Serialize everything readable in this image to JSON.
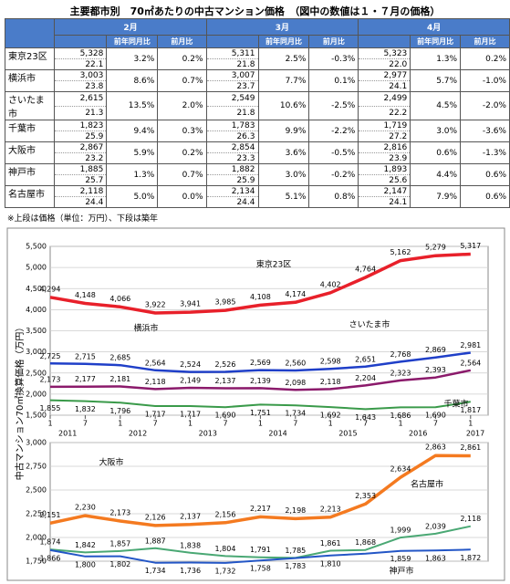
{
  "table": {
    "title": "主要都市別　70㎡あたりの中古マンション価格　（図中の数値は１・７月の価格）",
    "months": [
      "2月",
      "3月",
      "4月"
    ],
    "subheaders": [
      "前年同月比",
      "前月比"
    ],
    "rows": [
      {
        "city": "東京23区",
        "cells": [
          [
            "5,328",
            "22.1",
            "3.2%",
            "0.2%"
          ],
          [
            "5,311",
            "21.8",
            "2.5%",
            "-0.3%"
          ],
          [
            "5,323",
            "22.0",
            "1.3%",
            "0.2%"
          ]
        ]
      },
      {
        "city": "横浜市",
        "cells": [
          [
            "3,003",
            "23.8",
            "8.6%",
            "0.7%"
          ],
          [
            "3,007",
            "23.7",
            "7.7%",
            "0.1%"
          ],
          [
            "2,977",
            "24.1",
            "5.7%",
            "-1.0%"
          ]
        ]
      },
      {
        "city": "さいたま市",
        "cells": [
          [
            "2,615",
            "21.3",
            "13.5%",
            "2.0%"
          ],
          [
            "2,549",
            "21.8",
            "10.6%",
            "-2.5%"
          ],
          [
            "2,499",
            "22.2",
            "4.5%",
            "-2.0%"
          ]
        ]
      },
      {
        "city": "千葉市",
        "cells": [
          [
            "1,823",
            "25.9",
            "9.4%",
            "0.3%"
          ],
          [
            "1,783",
            "26.3",
            "9.9%",
            "-2.2%"
          ],
          [
            "1,719",
            "27.2",
            "3.0%",
            "-3.6%"
          ]
        ]
      },
      {
        "city": "大阪市",
        "cells": [
          [
            "2,867",
            "23.2",
            "5.9%",
            "0.2%"
          ],
          [
            "2,854",
            "23.3",
            "3.6%",
            "-0.5%"
          ],
          [
            "2,816",
            "23.9",
            "0.6%",
            "-1.3%"
          ]
        ]
      },
      {
        "city": "神戸市",
        "cells": [
          [
            "1,885",
            "25.7",
            "1.3%",
            "0.7%"
          ],
          [
            "1,882",
            "25.9",
            "3.0%",
            "-0.2%"
          ],
          [
            "1,893",
            "25.6",
            "4.4%",
            "0.6%"
          ]
        ]
      },
      {
        "city": "名古屋市",
        "cells": [
          [
            "2,118",
            "24.4",
            "5.0%",
            "0.0%"
          ],
          [
            "2,134",
            "24.4",
            "5.1%",
            "0.8%"
          ],
          [
            "2,147",
            "24.1",
            "7.9%",
            "0.6%"
          ]
        ]
      }
    ],
    "note": "※上段は価格（単位：万円）、下段は築年"
  },
  "chart_data": [
    {
      "type": "line",
      "ylabel": "中古マンション70㎡換算価格（万円）",
      "categories": [
        "1",
        "7",
        "1",
        "7",
        "1",
        "7",
        "1",
        "7",
        "1",
        "7",
        "1",
        "7",
        "1"
      ],
      "year_labels": [
        "2011",
        "2012",
        "2013",
        "2014",
        "2015",
        "2016",
        "2017"
      ],
      "ylim": [
        1500,
        5500
      ],
      "yticks": [
        {
          "value": 1500,
          "label": "1,500"
        },
        {
          "value": 2000,
          "label": "2,000"
        },
        {
          "value": 2500,
          "label": "2,500"
        },
        {
          "value": 3000,
          "label": "3,000"
        },
        {
          "value": 3500,
          "label": "3,500"
        },
        {
          "value": 4000,
          "label": "4,000"
        },
        {
          "value": 4500,
          "label": "4,500"
        },
        {
          "value": 5000,
          "label": "5,000"
        },
        {
          "value": 5500,
          "label": "5,500"
        }
      ],
      "grid": true,
      "series": [
        {
          "name": "東京23区",
          "color": "#e8202a",
          "values": [
            4294,
            4148,
            4066,
            3922,
            3941,
            3985,
            4108,
            4174,
            4402,
            4764,
            5162,
            5279,
            5317
          ],
          "value_labels": [
            "4,294",
            "4,148",
            "4,066",
            "3,922",
            "3,941",
            "3,985",
            "4,108",
            "4,174",
            "4,402",
            "4,764",
            "5,162",
            "5,279",
            "5,317"
          ]
        },
        {
          "name": "横浜市",
          "color": "#1f3fc8",
          "values": [
            2725,
            2715,
            2685,
            2564,
            2524,
            2526,
            2569,
            2560,
            2598,
            2651,
            2768,
            2869,
            2981
          ],
          "value_labels": [
            "2,725",
            "2,715",
            "2,685",
            "2,564",
            "2,524",
            "2,526",
            "2,569",
            "2,560",
            "2,598",
            "2,651",
            "2,768",
            "2,869",
            "2,981"
          ]
        },
        {
          "name": "さいたま市",
          "color": "#8b1a6b",
          "values": [
            2173,
            2177,
            2181,
            2118,
            2149,
            2137,
            2139,
            2098,
            2118,
            2204,
            2323,
            2393,
            2564
          ],
          "value_labels": [
            "2,173",
            "2,177",
            "2,181",
            "2,118",
            "2,149",
            "2,137",
            "2,139",
            "2,098",
            "2,118",
            "2,204",
            "2,323",
            "2,393",
            "2,564"
          ]
        },
        {
          "name": "千葉市",
          "color": "#3a9a4a",
          "values": [
            1855,
            1832,
            1796,
            1717,
            1717,
            1690,
            1751,
            1734,
            1692,
            1643,
            1686,
            1690,
            1817
          ],
          "value_labels": [
            "1,855",
            "1,832",
            "1,796",
            "1,717",
            "1,717",
            "1,690",
            "1,751",
            "1,734",
            "1,692",
            "1,643",
            "1,686",
            "1,690",
            "1,817"
          ]
        }
      ]
    },
    {
      "type": "line",
      "ylim": [
        1750,
        3000
      ],
      "yticks": [
        {
          "value": 1750,
          "label": "1,750"
        },
        {
          "value": 2000,
          "label": "2,000"
        },
        {
          "value": 2250,
          "label": "2,250"
        },
        {
          "value": 2500,
          "label": "2,500"
        },
        {
          "value": 2750,
          "label": "2,750"
        },
        {
          "value": 3000,
          "label": "3,000"
        }
      ],
      "grid": true,
      "series": [
        {
          "name": "大阪市",
          "color": "#f47a20",
          "values": [
            2151,
            2230,
            2173,
            2126,
            2137,
            2156,
            2217,
            2198,
            2213,
            2353,
            2634,
            2863,
            2861
          ],
          "value_labels": [
            "2,151",
            "2,230",
            "2,173",
            "2,126",
            "2,137",
            "2,156",
            "2,217",
            "2,198",
            "2,213",
            "2,353",
            "2,634",
            "2,863",
            "2,861"
          ]
        },
        {
          "name": "名古屋市",
          "color": "#4aa874",
          "values": [
            1874,
            1842,
            1857,
            1887,
            1838,
            1804,
            1791,
            1785,
            1861,
            1868,
            1999,
            2039,
            2118
          ],
          "value_labels": [
            "1,874",
            "1,842",
            "1,857",
            "1,887",
            "1,838",
            "1,804",
            "1,791",
            "1,785",
            "1,861",
            "1,868",
            "1,999",
            "2,039",
            "2,118"
          ]
        },
        {
          "name": "神戸市",
          "color": "#2356c6",
          "values": [
            1866,
            1800,
            1802,
            1734,
            1736,
            1732,
            1758,
            1783,
            1810,
            1830,
            1859,
            1863,
            1872
          ],
          "value_labels": [
            "1,866",
            "1,800",
            "1,802",
            "1,734",
            "1,736",
            "1,732",
            "1,758",
            "1,783",
            "1,810",
            null,
            "1,859",
            "1,863",
            "1,872"
          ]
        }
      ]
    }
  ]
}
